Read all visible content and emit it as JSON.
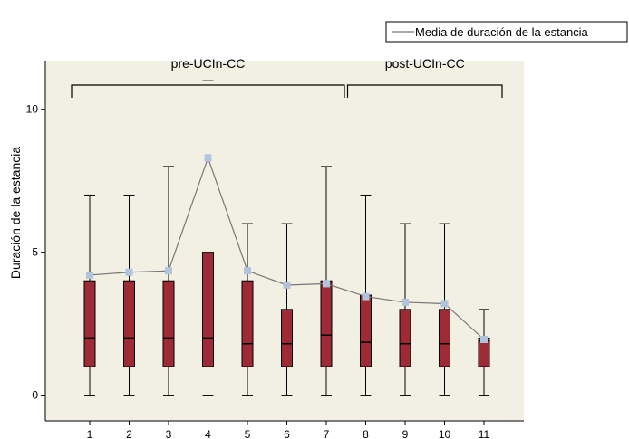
{
  "chart_data": {
    "type": "box",
    "ylabel": "Duración de la estancia",
    "ylim": [
      -0.9,
      11.7
    ],
    "yticks": [
      0,
      5,
      10
    ],
    "legend": {
      "label": "Media de duración de la estancia",
      "position": "top-right"
    },
    "groups": [
      {
        "label": "pre-UCIn-CC",
        "from": "1",
        "to": "7"
      },
      {
        "label": "post-UCIn-CC",
        "from": "8",
        "to": "11"
      }
    ],
    "categories": [
      "1",
      "2",
      "3",
      "4",
      "5",
      "6",
      "7",
      "8",
      "9",
      "10",
      "11"
    ],
    "boxes": [
      {
        "min": 0,
        "q1": 1,
        "median": 2,
        "q3": 4,
        "max": 7
      },
      {
        "min": 0,
        "q1": 1,
        "median": 2,
        "q3": 4,
        "max": 7
      },
      {
        "min": 0,
        "q1": 1,
        "median": 2,
        "q3": 4,
        "max": 8
      },
      {
        "min": 0,
        "q1": 1,
        "median": 2,
        "q3": 5,
        "max": 11
      },
      {
        "min": 0,
        "q1": 1,
        "median": 1.8,
        "q3": 4,
        "max": 6
      },
      {
        "min": 0,
        "q1": 1,
        "median": 1.8,
        "q3": 3,
        "max": 6
      },
      {
        "min": 0,
        "q1": 1,
        "median": 2.1,
        "q3": 4,
        "max": 8
      },
      {
        "min": 0,
        "q1": 1,
        "median": 1.85,
        "q3": 3.5,
        "max": 7
      },
      {
        "min": 0,
        "q1": 1,
        "median": 1.8,
        "q3": 3,
        "max": 6
      },
      {
        "min": 0,
        "q1": 1,
        "median": 1.8,
        "q3": 3,
        "max": 6
      },
      {
        "min": 0,
        "q1": 1,
        "median": 1.9,
        "q3": 2,
        "max": 3
      }
    ],
    "means": [
      4.2,
      4.3,
      4.35,
      8.3,
      4.35,
      3.85,
      3.9,
      3.45,
      3.25,
      3.2,
      1.95
    ],
    "colors": {
      "plot_bg": "#f2efe3",
      "box": "#9e2a35",
      "mean_line": "#777777",
      "mean_marker": "#b0c4de"
    }
  }
}
